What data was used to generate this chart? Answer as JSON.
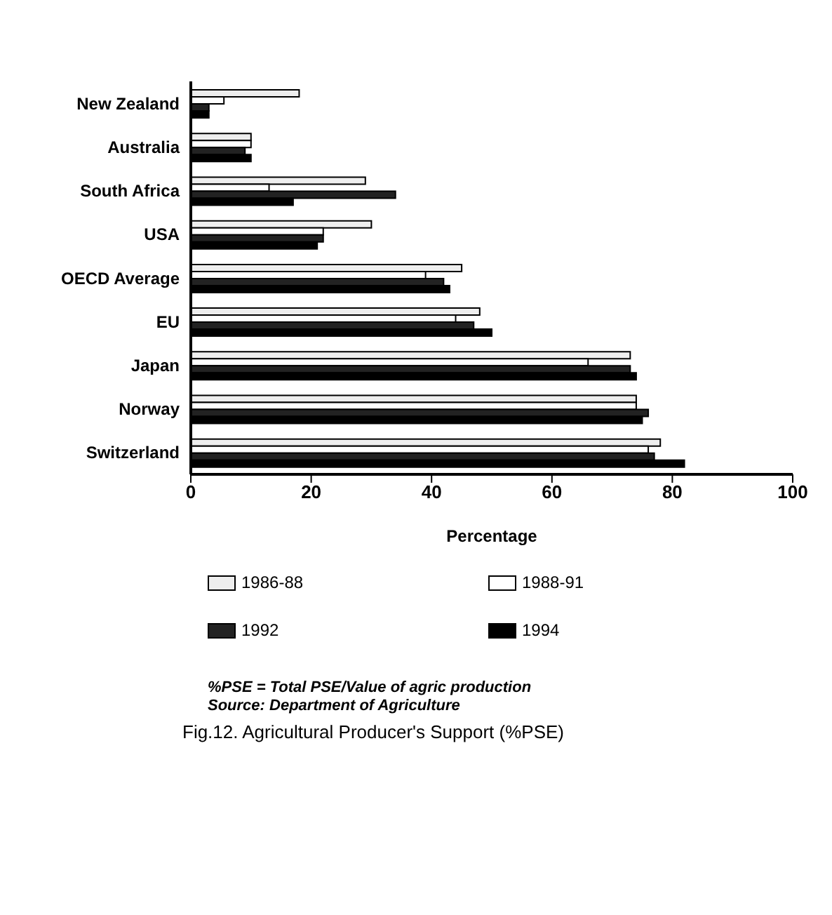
{
  "chart_data": {
    "type": "bar",
    "orientation": "horizontal",
    "title": "Fig.12. Agricultural Producer's Support (%PSE)",
    "xlabel": "Percentage",
    "categories": [
      "New Zealand",
      "Australia",
      "South Africa",
      "USA",
      "OECD Average",
      "EU",
      "Japan",
      "Norway",
      "Switzerland"
    ],
    "series": [
      {
        "name": "1986-88",
        "color": "#eeeeee",
        "values": [
          18,
          10,
          29,
          30,
          45,
          48,
          73,
          74,
          78
        ]
      },
      {
        "name": "1988-91",
        "color": "#ffffff",
        "values": [
          5.5,
          10,
          13,
          22,
          39,
          44,
          66,
          74,
          76
        ]
      },
      {
        "name": "1992",
        "color": "#222222",
        "values": [
          3,
          9,
          34,
          22,
          42,
          47,
          73,
          76,
          77
        ]
      },
      {
        "name": "1994",
        "color": "#000000",
        "values": [
          3,
          10,
          17,
          21,
          43,
          50,
          74,
          75,
          82
        ]
      }
    ],
    "xlim": [
      0,
      100
    ],
    "xticks": [
      0,
      20,
      40,
      60,
      80,
      100
    ],
    "legend": "bottom",
    "annotations": [
      "%PSE = Total PSE/Value of agric production",
      "Source: Department of Agriculture"
    ]
  }
}
